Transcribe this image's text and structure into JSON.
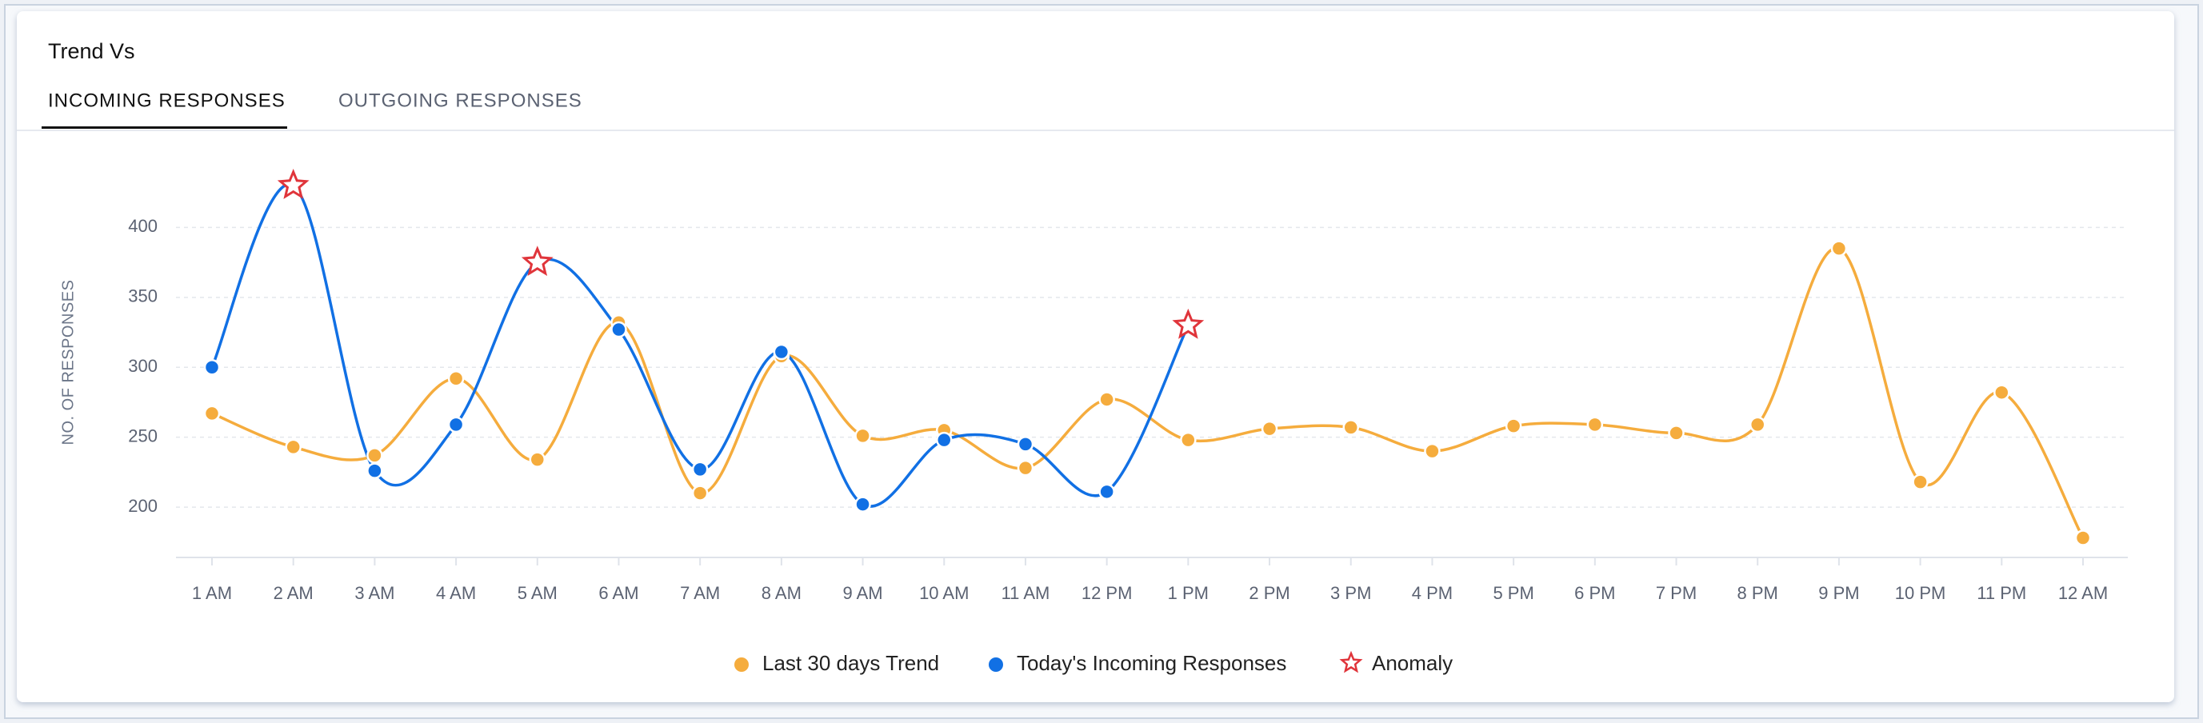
{
  "header": {
    "title": "Trend Vs",
    "tabs": [
      "INCOMING RESPONSES",
      "OUTGOING RESPONSES"
    ],
    "active_tab": 0
  },
  "chart_data": {
    "type": "line",
    "y_label": "NO. OF RESPONSES",
    "categories": [
      "1 AM",
      "2 AM",
      "3 AM",
      "4 AM",
      "5 AM",
      "6 AM",
      "7 AM",
      "8 AM",
      "9 AM",
      "10 AM",
      "11 AM",
      "12 PM",
      "1 PM",
      "2 PM",
      "3 PM",
      "4 PM",
      "5 PM",
      "6 PM",
      "7 PM",
      "8 PM",
      "9 PM",
      "10 PM",
      "11 PM",
      "12 AM"
    ],
    "series": [
      {
        "name": "Last 30 days Trend",
        "color": "#f5ac3d",
        "values": [
          267,
          243,
          237,
          292,
          234,
          332,
          210,
          308,
          251,
          255,
          228,
          277,
          248,
          256,
          257,
          240,
          258,
          259,
          253,
          259,
          385,
          218,
          282,
          178
        ]
      },
      {
        "name": "Today's Incoming Responses",
        "color": "#1170e4",
        "values": [
          300,
          430,
          226,
          259,
          375,
          327,
          227,
          311,
          202,
          248,
          245,
          211,
          330,
          null,
          null,
          null,
          null,
          null,
          null,
          null,
          null,
          null,
          null,
          null
        ]
      },
      {
        "name": "Anomaly",
        "color": "#e0353b",
        "values": [
          null,
          430,
          null,
          null,
          375,
          null,
          null,
          null,
          null,
          null,
          null,
          null,
          330,
          null,
          null,
          null,
          null,
          null,
          null,
          null,
          null,
          null,
          null,
          null
        ]
      }
    ],
    "ylim": [
      164,
      450
    ],
    "yticks": [
      200,
      250,
      300,
      350,
      400
    ],
    "grid": true,
    "legend": "bottom"
  }
}
